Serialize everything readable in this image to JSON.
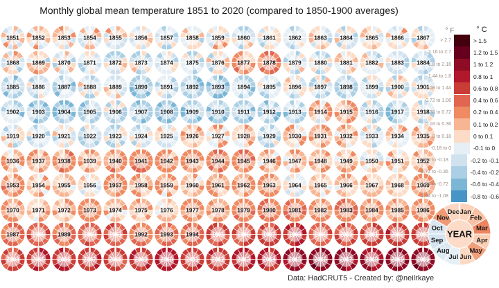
{
  "title": "Monthly global mean temperature 1851 to 2020 (compared to 1850-1900 averages)",
  "footer": {
    "text": "Data: HadCRUT5  -  Created by: @neilrkaye"
  },
  "legend": {
    "f_header": "° F",
    "c_header": "° C",
    "f_labels": [
      "> 2.7",
      "2.16 to 2.7",
      "1.8 to 2.16",
      "1.44 to 1.8",
      "1.08 to 1.44",
      "0.72 to 1.08",
      "0.36 to 0.72",
      "0.18 to 0.36",
      "0 to 0.18",
      "-0.18 to 0",
      "-0.36 to -0.18",
      "-0.72 to -0.36",
      "-1.08 to -0.72",
      "-1.44 to -1.08"
    ],
    "c_labels": [
      "> 1.5",
      "1.2 to 1.5",
      "1 to 1.2",
      "0.8 to 1",
      "0.6 to 0.8",
      "0.4 to 0.6",
      "0.2 to 0.4",
      "0.1 to 0.2",
      "0 to 0.1",
      "-0.1 to 0",
      "-0.2 to -0.1",
      "-0.4 to -0.2",
      "-0.6 to -0.4",
      "-0.8 to -0.6"
    ],
    "colors": [
      "#43000d",
      "#67001f",
      "#8e0c25",
      "#b2182b",
      "#ca3d37",
      "#e16651",
      "#ef8a62",
      "#f7b593",
      "#fcdcc6",
      "#e6eff5",
      "#d1e2ef",
      "#abcfe4",
      "#7cb6d7",
      "#4695c6"
    ]
  },
  "month_wheel": {
    "center_label": "YEAR",
    "months": [
      "Jan",
      "Feb",
      "Mar",
      "Apr",
      "May",
      "Jun",
      "Jul",
      "Aug",
      "Sep",
      "Oct",
      "Nov",
      "Dec"
    ],
    "month_colors": [
      "#fbd3ba",
      "#f8c1a4",
      "#ee8560",
      "#fbcfb4",
      "#f2a07b",
      "#fcd9c3",
      "#e6eff5",
      "#dce9f2",
      "#d5e4f0",
      "#d8e6f1",
      "#f09a75",
      "#fbd6c0"
    ],
    "center_color": "#fcdcc9"
  },
  "chart_data": {
    "type": "heatmap",
    "title": "Monthly global mean temperature 1851 to 2020 (compared to 1850-1900 averages)",
    "unit": "°C anomaly vs 1850-1900 average",
    "layout": {
      "rows": 10,
      "cols": 17,
      "order": "row-major, 17 years per row",
      "each_circle": "12 monthly wedges clockwise from Jan at 12 o'clock; year label in center; notch between Dec and Jan"
    },
    "year_start": 1851,
    "year_end": 2020,
    "annual_anomaly_c": [
      0.05,
      0.1,
      0.05,
      0.05,
      0.0,
      -0.05,
      -0.1,
      -0.05,
      0.05,
      -0.05,
      -0.1,
      -0.15,
      0.0,
      -0.1,
      0.0,
      0.0,
      -0.05,
      0.0,
      0.0,
      -0.05,
      -0.1,
      -0.05,
      -0.05,
      -0.1,
      -0.15,
      -0.1,
      0.25,
      0.3,
      -0.1,
      -0.05,
      0.0,
      -0.05,
      -0.1,
      -0.2,
      -0.25,
      -0.2,
      -0.25,
      -0.1,
      0.0,
      -0.3,
      -0.2,
      -0.3,
      -0.3,
      -0.25,
      -0.2,
      -0.05,
      -0.1,
      -0.25,
      -0.15,
      -0.05,
      -0.1,
      -0.2,
      -0.3,
      -0.35,
      -0.25,
      -0.15,
      -0.3,
      -0.35,
      -0.35,
      -0.3,
      -0.3,
      -0.25,
      -0.25,
      0.1,
      0.15,
      -0.2,
      -0.3,
      -0.15,
      -0.1,
      -0.1,
      -0.05,
      -0.15,
      -0.1,
      -0.1,
      -0.05,
      0.15,
      0.1,
      0.1,
      -0.15,
      0.1,
      0.2,
      0.15,
      -0.05,
      0.05,
      0.05,
      0.1,
      0.2,
      0.25,
      0.2,
      0.25,
      0.3,
      0.2,
      0.2,
      0.35,
      0.3,
      0.15,
      0.15,
      0.15,
      0.1,
      0.05,
      0.15,
      0.2,
      0.25,
      0.1,
      0.05,
      0.0,
      0.2,
      0.2,
      0.15,
      0.1,
      0.2,
      0.15,
      0.2,
      -0.05,
      0.05,
      0.1,
      0.15,
      0.1,
      0.25,
      0.2,
      0.1,
      0.15,
      0.3,
      0.1,
      0.15,
      0.05,
      0.3,
      0.2,
      0.3,
      0.35,
      0.4,
      0.25,
      0.4,
      0.25,
      0.25,
      0.3,
      0.45,
      0.55,
      0.4,
      0.55,
      0.55,
      0.4,
      0.4,
      0.45,
      0.6,
      0.55,
      0.6,
      0.75,
      0.55,
      0.55,
      0.65,
      0.7,
      0.7,
      0.65,
      0.75,
      0.75,
      0.75,
      0.65,
      0.75,
      0.85,
      0.7,
      0.75,
      0.8,
      0.85,
      1.0,
      1.1,
      1.05,
      0.95,
      1.05,
      1.1
    ],
    "color_bins_c": [
      "> 1.5",
      "1.2 to 1.5",
      "1 to 1.2",
      "0.8 to 1",
      "0.6 to 0.8",
      "0.4 to 0.6",
      "0.2 to 0.4",
      "0.1 to 0.2",
      "0 to 0.1",
      "-0.1 to 0",
      "-0.2 to -0.1",
      "-0.4 to -0.2",
      "-0.6 to -0.4",
      "-0.8 to -0.6"
    ],
    "bin_colors": [
      "#43000d",
      "#67001f",
      "#8e0c25",
      "#b2182b",
      "#ca3d37",
      "#e16651",
      "#ef8a62",
      "#f7b593",
      "#fcdcc6",
      "#e6eff5",
      "#d1e2ef",
      "#abcfe4",
      "#7cb6d7",
      "#4695c6"
    ]
  }
}
